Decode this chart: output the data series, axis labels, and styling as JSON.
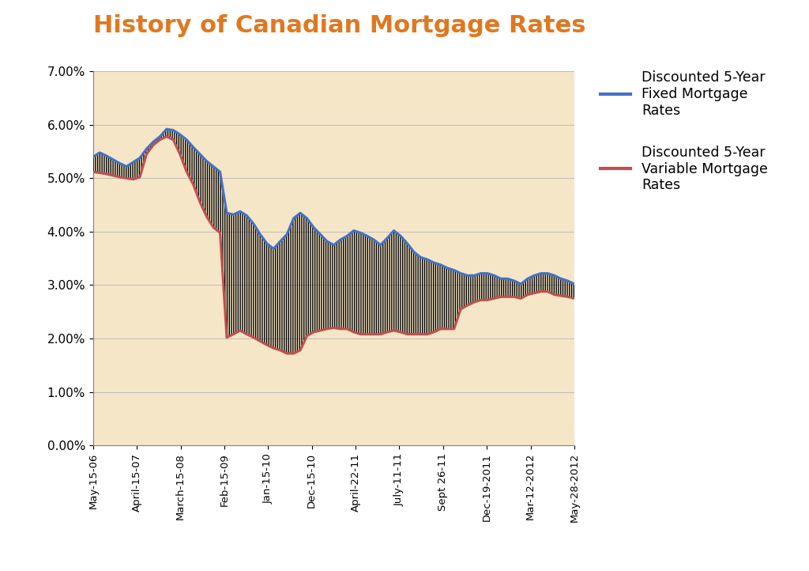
{
  "title": "History of Canadian Mortgage Rates",
  "title_color": "#E07820",
  "title_fontsize": 22,
  "plot_bg_color": "#F5E6C8",
  "outer_bg": "#FFFFFF",
  "fixed_color": "#4472C4",
  "variable_color": "#C0504D",
  "fixed_label": "Discounted 5-Year\nFixed Mortgage\nRates",
  "variable_label": "Discounted 5-Year\nVariable Mortgage\nRates",
  "ylim": [
    0.0,
    0.07
  ],
  "yticks": [
    0.0,
    0.01,
    0.02,
    0.03,
    0.04,
    0.05,
    0.06,
    0.07
  ],
  "ytick_labels": [
    "0.00%",
    "1.00%",
    "2.00%",
    "3.00%",
    "4.00%",
    "5.00%",
    "6.00%",
    "7.00%"
  ],
  "xtick_labels": [
    "May-15-06",
    "April-15-07",
    "March-15-08",
    "Feb-15-09",
    "Jan-15-10",
    "Dec-15-10",
    "April-22-11",
    "July-11-11",
    "Sept 26-11",
    "Dec-19-2011",
    "Mar-12-2012",
    "May-28-2012"
  ],
  "fixed_rates": [
    0.054,
    0.0548,
    0.0542,
    0.0535,
    0.0528,
    0.0522,
    0.053,
    0.0538,
    0.0555,
    0.0568,
    0.0578,
    0.0592,
    0.059,
    0.0582,
    0.0572,
    0.0558,
    0.0545,
    0.0532,
    0.0522,
    0.0512,
    0.0435,
    0.0432,
    0.0438,
    0.043,
    0.0415,
    0.0395,
    0.0378,
    0.0368,
    0.0382,
    0.0395,
    0.0425,
    0.0435,
    0.0425,
    0.0408,
    0.0395,
    0.0382,
    0.0375,
    0.0385,
    0.0392,
    0.0402,
    0.0398,
    0.0392,
    0.0385,
    0.0375,
    0.0388,
    0.0402,
    0.0392,
    0.0378,
    0.0362,
    0.0352,
    0.0348,
    0.0342,
    0.0338,
    0.0332,
    0.0328,
    0.0322,
    0.0318,
    0.0318,
    0.0322,
    0.0322,
    0.0318,
    0.0312,
    0.0312,
    0.0308,
    0.0302,
    0.0312,
    0.0318,
    0.0322,
    0.0322,
    0.0318,
    0.0312,
    0.0308,
    0.0302
  ],
  "variable_rates": [
    0.0512,
    0.051,
    0.0508,
    0.0505,
    0.0502,
    0.05,
    0.0498,
    0.0502,
    0.0545,
    0.0562,
    0.0572,
    0.0578,
    0.0572,
    0.0545,
    0.0512,
    0.0488,
    0.0455,
    0.0428,
    0.0408,
    0.0398,
    0.0202,
    0.0208,
    0.0215,
    0.0208,
    0.0202,
    0.0195,
    0.0188,
    0.0182,
    0.0178,
    0.0172,
    0.0172,
    0.0178,
    0.0205,
    0.0212,
    0.0215,
    0.0218,
    0.022,
    0.0218,
    0.0218,
    0.0212,
    0.0208,
    0.0208,
    0.0208,
    0.0208,
    0.0212,
    0.0215,
    0.0212,
    0.0208,
    0.0208,
    0.0208,
    0.0208,
    0.0212,
    0.0218,
    0.0218,
    0.0218,
    0.0255,
    0.0262,
    0.0268,
    0.0272,
    0.0272,
    0.0275,
    0.0278,
    0.0278,
    0.0278,
    0.0275,
    0.0282,
    0.0285,
    0.0288,
    0.0288,
    0.0282,
    0.028,
    0.0278,
    0.0275
  ]
}
